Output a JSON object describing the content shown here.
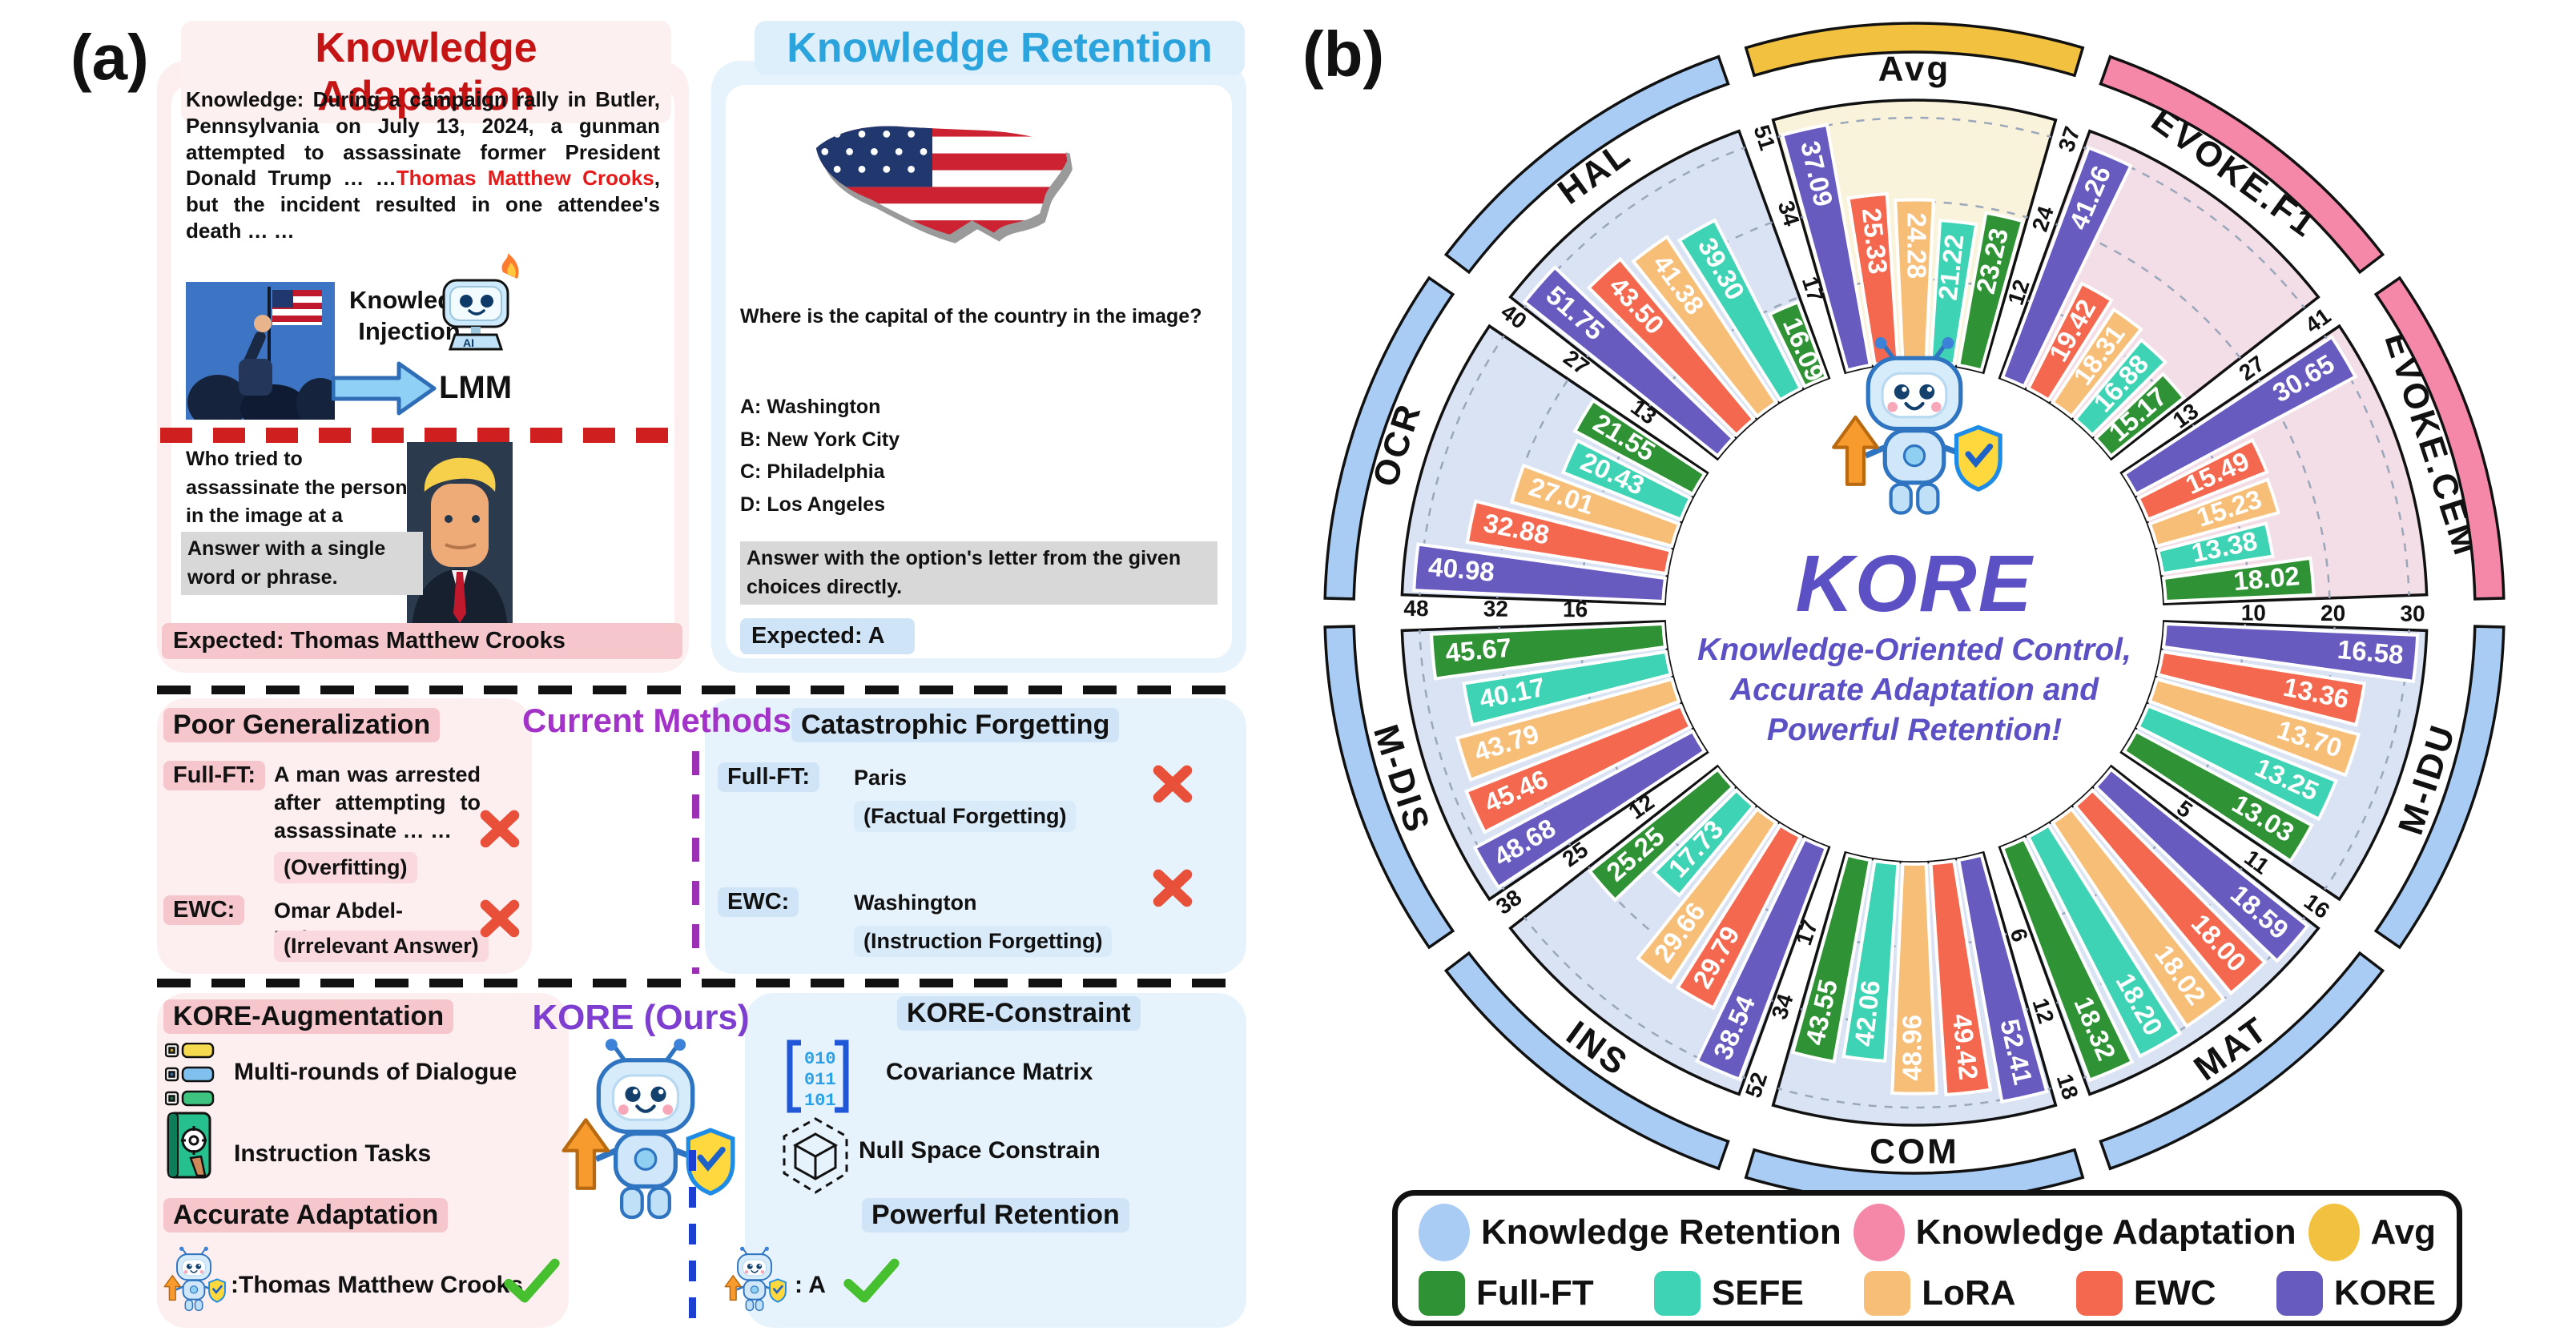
{
  "figure": {
    "panel_a_label": "(a)",
    "panel_b_label": "(b)"
  },
  "adaptation": {
    "title": "Knowledge Adaptation",
    "title_color": "#c41414",
    "knowledge_label": "Knowledge:",
    "knowledge_pre": " During a campaign rally in Butler, Pennsylvania on July 13, 2024, a gunman attempted to assassinate former President Donald Trump … …",
    "knowledge_name": "Thomas Matthew Crooks",
    "knowledge_post": ", but the incident resulted in one attendee's death … …",
    "injection_line1": "Knowledge",
    "injection_line2": "Injection",
    "lmm_label": "LMM",
    "ai_label": "AI",
    "question": "Who tried to assassinate the person in the image at a campaign rally in Butler, Pennsylvania?",
    "instruction": "Answer with a single word or phrase.",
    "expected_label": "Expected:",
    "expected_value": "Thomas Matthew Crooks"
  },
  "retention": {
    "title": "Knowledge Retention",
    "title_color": "#2ba3dc",
    "question": "Where is the capital of the country in the image?",
    "options": [
      "A: Washington",
      "B: New York City",
      "C: Philadelphia",
      "D: Los Angeles"
    ],
    "instruction": "Answer with the option's letter from the given choices directly.",
    "expected_label": "Expected:",
    "expected_value": "A"
  },
  "methods": {
    "title": "Current Methods",
    "left_header": "Poor Generalization",
    "right_header": "Catastrophic Forgetting",
    "left": [
      {
        "method": "Full-FT:",
        "answer": "A man was arrested after attempting to assassinate … …",
        "note": "(Overfitting)"
      },
      {
        "method": "EWC:",
        "answer": "Omar Abdel-Rahman",
        "note": "(Irrelevant Answer)"
      }
    ],
    "right": [
      {
        "method": "Full-FT:",
        "answer": "Paris",
        "note": "(Factual Forgetting)"
      },
      {
        "method": "EWC:",
        "answer": "Washington",
        "note": "(Instruction Forgetting)"
      }
    ]
  },
  "kore_section": {
    "title": "KORE (Ours)",
    "augmentation_header": "KORE-Augmentation",
    "augmentation_items": [
      "Multi-rounds of Dialogue",
      "Instruction Tasks"
    ],
    "adaptation_header": "Accurate Adaptation",
    "adaptation_answer": ":Thomas Matthew Crooks",
    "constraint_header": "KORE-Constraint",
    "constraint_items": [
      "Covariance Matrix",
      "Null Space Constrain"
    ],
    "retention_header": "Powerful Retention",
    "retention_answer": ": A",
    "matrix_rows": [
      "010",
      "011",
      "101"
    ]
  },
  "chart_data": {
    "type": "radial-bar",
    "center": {
      "title": "KORE",
      "tagline_lines": [
        "Knowledge-Oriented Control,",
        "Accurate Adaptation and",
        "Powerful Retention!"
      ],
      "accent_color": "#5b50c4"
    },
    "methods": [
      {
        "name": "Full-FT",
        "color": "#2f9235"
      },
      {
        "name": "SEFE",
        "color": "#3ed3b4"
      },
      {
        "name": "LoRA",
        "color": "#f7be77"
      },
      {
        "name": "EWC",
        "color": "#f4684f"
      },
      {
        "name": "KORE",
        "color": "#675bc0"
      }
    ],
    "groups": [
      {
        "name": "Knowledge Retention",
        "arc_color": "#a9ccf4",
        "bg_color": "#dae3f3"
      },
      {
        "name": "Knowledge Adaptation",
        "arc_color": "#f587a8",
        "bg_color": "#f3dde6"
      },
      {
        "name": "Avg",
        "arc_color": "#f3c140",
        "bg_color": "#faf3dc"
      }
    ],
    "bar_order_clockwise": [
      "KORE",
      "EWC",
      "LoRA",
      "SEFE",
      "Full-FT"
    ],
    "segments": [
      {
        "label": "Avg",
        "group": 2,
        "ticks": [
          37,
          24,
          12
        ],
        "values": {
          "KORE": 37.09,
          "EWC": 25.33,
          "LoRA": 24.28,
          "SEFE": 21.22,
          "Full-FT": 23.23
        }
      },
      {
        "label": "EVOKE.F1",
        "group": 1,
        "ticks": [
          41,
          27,
          13
        ],
        "values": {
          "KORE": 41.26,
          "EWC": 19.42,
          "LoRA": 18.31,
          "SEFE": 16.88,
          "Full-FT": 15.17
        }
      },
      {
        "label": "EVOKE.CEM",
        "group": 1,
        "ticks": [
          30,
          20,
          10
        ],
        "values": {
          "KORE": 30.65,
          "EWC": 15.49,
          "LoRA": 15.23,
          "SEFE": 13.38,
          "Full-FT": 18.02
        }
      },
      {
        "label": "M-IDU",
        "group": 0,
        "ticks": [
          16,
          11,
          5
        ],
        "values": {
          "KORE": 16.58,
          "EWC": 13.36,
          "LoRA": 13.7,
          "SEFE": 13.25,
          "Full-FT": 13.03
        }
      },
      {
        "label": "MAT",
        "group": 0,
        "ticks": [
          18,
          12,
          6
        ],
        "values": {
          "KORE": 18.59,
          "EWC": 18.0,
          "LoRA": 18.02,
          "SEFE": 18.2,
          "Full-FT": 18.32
        }
      },
      {
        "label": "COM",
        "group": 0,
        "ticks": [
          52,
          34,
          17
        ],
        "values": {
          "KORE": 52.41,
          "EWC": 49.42,
          "LoRA": 48.96,
          "SEFE": 42.06,
          "Full-FT": 43.55
        }
      },
      {
        "label": "INS",
        "group": 0,
        "ticks": [
          38,
          25,
          12
        ],
        "values": {
          "KORE": 38.54,
          "EWC": 29.79,
          "LoRA": 29.66,
          "SEFE": 17.73,
          "Full-FT": 25.25
        }
      },
      {
        "label": "M-DIS",
        "group": 0,
        "ticks": [
          48,
          32,
          16
        ],
        "values": {
          "KORE": 48.68,
          "EWC": 45.46,
          "LoRA": 43.79,
          "SEFE": 40.17,
          "Full-FT": 45.67
        }
      },
      {
        "label": "OCR",
        "group": 0,
        "ticks": [
          40,
          27,
          13
        ],
        "values": {
          "KORE": 40.98,
          "EWC": 32.88,
          "LoRA": 27.01,
          "SEFE": 20.43,
          "Full-FT": 21.55
        }
      },
      {
        "label": "HAL",
        "group": 0,
        "ticks": [
          51,
          34,
          17
        ],
        "values": {
          "KORE": 51.75,
          "EWC": 43.5,
          "LoRA": 41.38,
          "SEFE": 39.3,
          "Full-FT": 16.09
        }
      }
    ],
    "legend": {
      "row1": [
        "Knowledge Retention",
        "Knowledge Adaptation",
        "Avg"
      ],
      "row2": [
        "Full-FT",
        "SEFE",
        "LoRA",
        "EWC",
        "KORE"
      ]
    }
  }
}
